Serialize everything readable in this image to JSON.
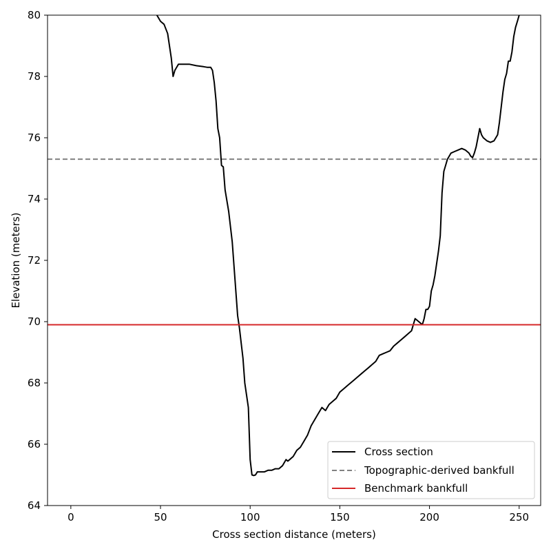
{
  "chart_data": {
    "type": "line",
    "xlabel": "Cross section distance (meters)",
    "ylabel": "Elevation (meters)",
    "xlim": [
      -13,
      262
    ],
    "ylim": [
      64,
      80
    ],
    "xticks": [
      0,
      50,
      100,
      150,
      200,
      250
    ],
    "yticks": [
      64,
      66,
      68,
      70,
      72,
      74,
      76,
      78,
      80
    ],
    "grid": false,
    "legend_position": "lower-right",
    "series": [
      {
        "name": "Cross section",
        "style": "solid",
        "color": "#000000",
        "x": [
          48,
          50,
          52,
          54,
          56,
          57,
          58,
          60,
          62,
          66,
          70,
          74,
          76,
          77,
          78,
          79,
          80,
          81,
          82,
          83,
          84,
          85,
          86,
          88,
          90,
          91,
          92,
          93,
          94,
          95,
          96,
          97,
          98,
          99,
          100,
          101,
          102,
          103,
          104,
          106,
          108,
          110,
          112,
          114,
          116,
          118,
          120,
          121,
          122,
          124,
          126,
          128,
          130,
          132,
          134,
          136,
          138,
          140,
          142,
          143,
          144,
          146,
          148,
          150,
          152,
          154,
          156,
          158,
          160,
          162,
          164,
          166,
          168,
          170,
          172,
          174,
          176,
          178,
          180,
          182,
          184,
          186,
          188,
          190,
          191,
          192,
          194,
          196,
          197,
          198,
          199,
          200,
          201,
          202,
          203,
          204,
          205,
          206,
          207,
          208,
          209,
          210,
          212,
          214,
          216,
          218,
          220,
          222,
          223,
          224,
          225,
          226,
          227,
          228,
          229,
          230,
          232,
          234,
          236,
          238,
          239,
          240,
          241,
          242,
          243,
          244,
          245,
          246,
          247,
          248,
          249,
          250
        ],
        "y": [
          80.0,
          79.8,
          79.7,
          79.4,
          78.6,
          78.0,
          78.2,
          78.4,
          78.4,
          78.4,
          78.35,
          78.32,
          78.3,
          78.3,
          78.3,
          78.2,
          77.8,
          77.2,
          76.3,
          76.0,
          75.1,
          75.05,
          74.3,
          73.6,
          72.6,
          71.8,
          71.0,
          70.2,
          69.8,
          69.3,
          68.8,
          68.0,
          67.6,
          67.2,
          65.5,
          65.0,
          64.98,
          65.0,
          65.1,
          65.1,
          65.1,
          65.15,
          65.15,
          65.2,
          65.2,
          65.3,
          65.5,
          65.45,
          65.5,
          65.6,
          65.8,
          65.9,
          66.1,
          66.3,
          66.6,
          66.8,
          67.0,
          67.2,
          67.1,
          67.2,
          67.3,
          67.4,
          67.5,
          67.7,
          67.8,
          67.9,
          68.0,
          68.1,
          68.2,
          68.3,
          68.4,
          68.5,
          68.6,
          68.7,
          68.9,
          68.95,
          69.0,
          69.05,
          69.2,
          69.3,
          69.4,
          69.5,
          69.6,
          69.7,
          69.9,
          70.1,
          70.0,
          69.9,
          70.1,
          70.4,
          70.4,
          70.5,
          71.0,
          71.2,
          71.5,
          71.9,
          72.3,
          72.8,
          74.2,
          74.9,
          75.1,
          75.3,
          75.5,
          75.55,
          75.6,
          75.65,
          75.6,
          75.5,
          75.4,
          75.35,
          75.5,
          75.7,
          76.0,
          76.3,
          76.1,
          76.0,
          75.9,
          75.85,
          75.9,
          76.1,
          76.5,
          77.0,
          77.5,
          77.9,
          78.1,
          78.5,
          78.5,
          78.8,
          79.3,
          79.6,
          79.8,
          80.0
        ]
      },
      {
        "name": "Topographic-derived bankfull",
        "style": "dashed",
        "color": "#808080",
        "y_constant": 75.3
      },
      {
        "name": "Benchmark bankfull",
        "style": "solid",
        "color": "#d62728",
        "y_constant": 69.9
      }
    ]
  }
}
